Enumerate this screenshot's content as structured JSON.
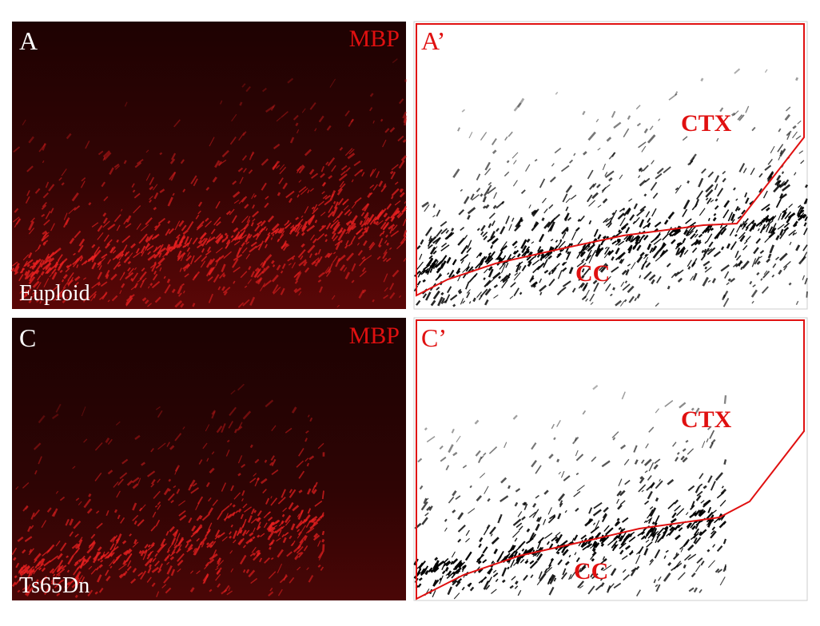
{
  "panels": [
    {
      "letter": "A",
      "stain": "MBP",
      "genotype": "Euploid"
    },
    {
      "letter": "A’",
      "region_top": "CTX",
      "region_bottom": "CC"
    },
    {
      "letter": "C",
      "stain": "MBP",
      "genotype": "Ts65Dn"
    },
    {
      "letter": "C’",
      "region_top": "CTX",
      "region_bottom": "CC"
    }
  ]
}
